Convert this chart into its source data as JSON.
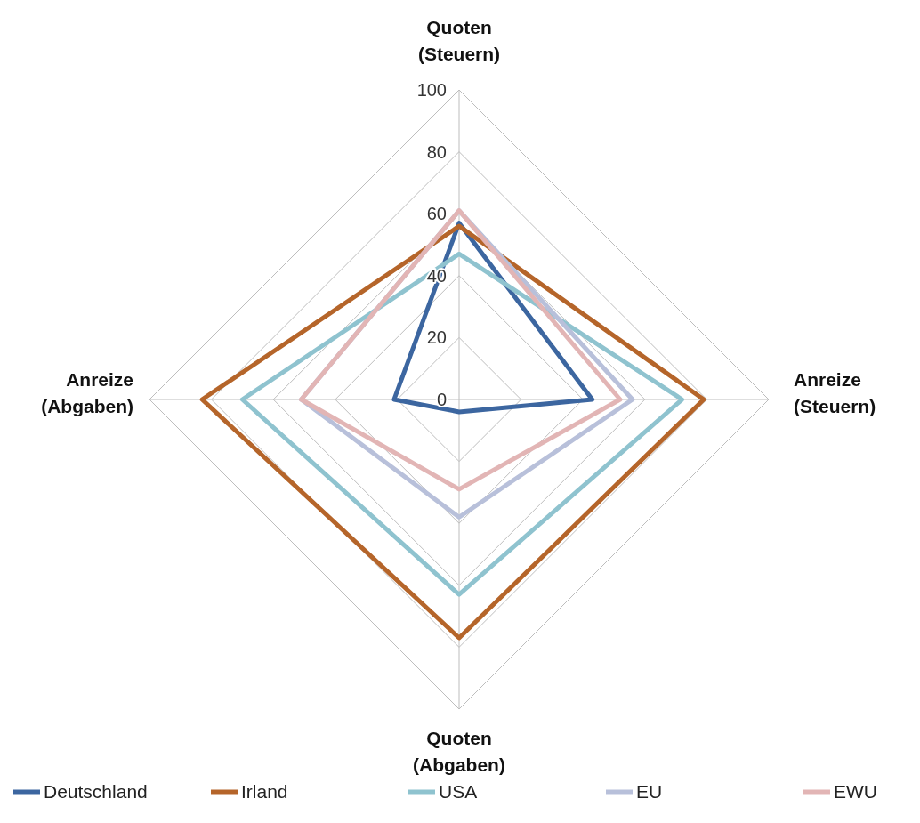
{
  "chart_data": {
    "type": "radar",
    "categories": [
      "Quoten (Steuern)",
      "Anreize (Steuern)",
      "Quoten (Abgaben)",
      "Anreize (Abgaben)"
    ],
    "ylim": [
      0,
      100
    ],
    "yticks": [
      0,
      20,
      40,
      60,
      80,
      100
    ],
    "grid": true,
    "legend": "bottom",
    "marker": "none",
    "series": [
      {
        "name": "Deutschland",
        "color": "#3c66a0",
        "values": [
          57,
          43,
          4,
          21
        ]
      },
      {
        "name": "Irland",
        "color": "#b5652a",
        "values": [
          56,
          79,
          77,
          83
        ]
      },
      {
        "name": "USA",
        "color": "#8fc3cf",
        "values": [
          47,
          72,
          63,
          70
        ]
      },
      {
        "name": "EU",
        "color": "#b8c0da",
        "values": [
          61,
          56,
          38,
          51
        ]
      },
      {
        "name": "EWU",
        "color": "#e2b5b5",
        "values": [
          61,
          52,
          29,
          51
        ]
      }
    ]
  }
}
